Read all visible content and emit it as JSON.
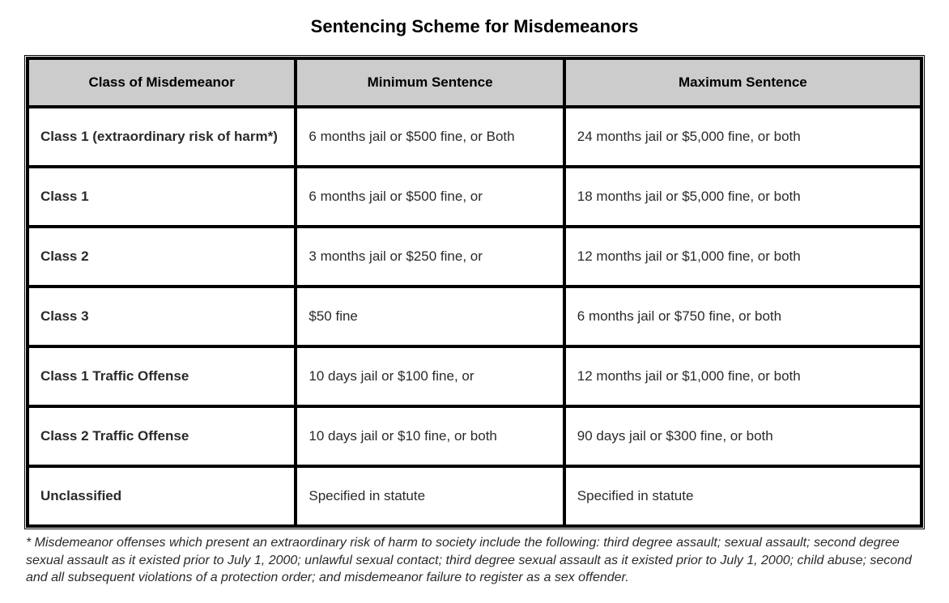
{
  "title": "Sentencing Scheme for Misdemeanors",
  "table": {
    "columns": [
      "Class of Misdemeanor",
      "Minimum Sentence",
      "Maximum Sentence"
    ],
    "rows": [
      {
        "class": "Class 1 (extraordinary risk of harm*)",
        "min": "6 months jail or $500 fine, or Both",
        "max": "24 months jail or $5,000 fine, or both"
      },
      {
        "class": "Class 1",
        "min": "6 months jail or $500 fine, or",
        "max": "18 months jail or $5,000 fine, or both"
      },
      {
        "class": "Class 2",
        "min": "3 months jail or $250 fine, or",
        "max": "12 months jail or $1,000 fine, or both"
      },
      {
        "class": "Class 3",
        "min": "$50 fine",
        "max": "6 months jail or $750 fine, or both"
      },
      {
        "class": "Class 1 Traffic Offense",
        "min": "10 days jail or $100 fine, or",
        "max": "12 months jail or $1,000 fine, or both"
      },
      {
        "class": "Class 2 Traffic Offense",
        "min": "10 days jail or $10 fine, or both",
        "max": "90 days jail or $300 fine, or both"
      },
      {
        "class": "Unclassified",
        "min": "Specified in statute",
        "max": "Specified in statute"
      }
    ],
    "header_bg": "#cccccc",
    "cell_bg": "#ffffff",
    "border_color": "#000000",
    "font_size_header": 17,
    "font_size_cell": 17
  },
  "footnote": "* Misdemeanor offenses which present an extraordinary risk of harm to society include the following: third degree assault; sexual assault; second degree sexual assault as it existed prior to July 1, 2000; unlawful sexual contact; third degree sexual assault as it existed prior to July 1, 2000; child abuse; second and all subsequent violations of a protection order; and misdemeanor failure to register as a sex offender."
}
